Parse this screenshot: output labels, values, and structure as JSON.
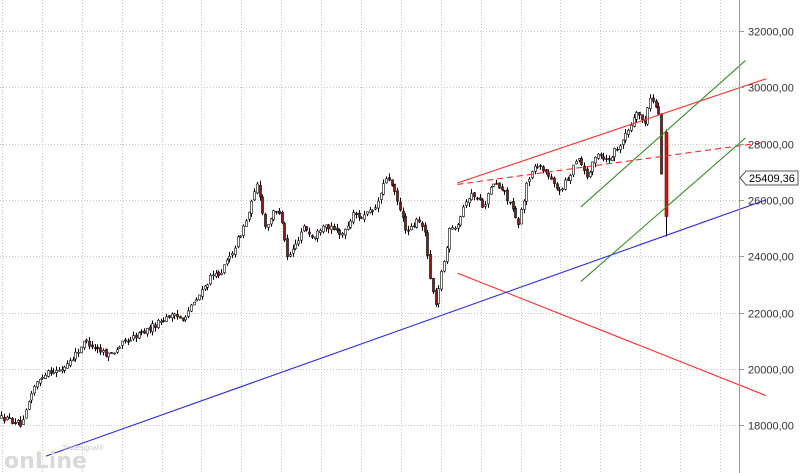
{
  "chart_data": {
    "type": "candlestick",
    "ylim": [
      16300,
      33100
    ],
    "y_ticks": [
      18000,
      20000,
      22000,
      24000,
      26000,
      28000,
      30000,
      32000
    ],
    "y_tick_labels": [
      "18000,00",
      "20000,00",
      "22000,00",
      "24000,00",
      "26000,00",
      "28000,00",
      "30000,00",
      "32000,00"
    ],
    "last_value": 25409.36,
    "last_value_label": "25409,36",
    "grid": true,
    "candle_path": [
      [
        0,
        18300
      ],
      [
        12,
        18200
      ],
      [
        25,
        18000
      ],
      [
        35,
        19300
      ],
      [
        50,
        19950
      ],
      [
        62,
        19900
      ],
      [
        75,
        20400
      ],
      [
        88,
        21000
      ],
      [
        100,
        20700
      ],
      [
        112,
        20500
      ],
      [
        125,
        20900
      ],
      [
        140,
        21200
      ],
      [
        155,
        21500
      ],
      [
        170,
        21900
      ],
      [
        185,
        21800
      ],
      [
        200,
        22500
      ],
      [
        212,
        23200
      ],
      [
        225,
        23500
      ],
      [
        238,
        24400
      ],
      [
        250,
        25400
      ],
      [
        260,
        26600
      ],
      [
        268,
        25000
      ],
      [
        275,
        25500
      ],
      [
        283,
        25600
      ],
      [
        290,
        23900
      ],
      [
        298,
        24400
      ],
      [
        306,
        25100
      ],
      [
        316,
        24600
      ],
      [
        326,
        25200
      ],
      [
        336,
        24900
      ],
      [
        346,
        24800
      ],
      [
        356,
        25500
      ],
      [
        366,
        25400
      ],
      [
        378,
        25700
      ],
      [
        390,
        26900
      ],
      [
        400,
        25900
      ],
      [
        410,
        24800
      ],
      [
        420,
        25300
      ],
      [
        428,
        24800
      ],
      [
        433,
        23100
      ],
      [
        438,
        22300
      ],
      [
        445,
        23600
      ],
      [
        452,
        24900
      ],
      [
        460,
        25200
      ],
      [
        468,
        26000
      ],
      [
        476,
        26200
      ],
      [
        486,
        25800
      ],
      [
        496,
        26600
      ],
      [
        506,
        26300
      ],
      [
        514,
        25800
      ],
      [
        520,
        25000
      ],
      [
        530,
        26700
      ],
      [
        540,
        27300
      ],
      [
        550,
        26900
      ],
      [
        560,
        26300
      ],
      [
        570,
        26700
      ],
      [
        580,
        27600
      ],
      [
        590,
        26800
      ],
      [
        600,
        27700
      ],
      [
        610,
        27400
      ],
      [
        620,
        27900
      ],
      [
        630,
        28400
      ],
      [
        640,
        29200
      ],
      [
        646,
        28600
      ],
      [
        652,
        29600
      ],
      [
        657,
        29500
      ],
      [
        661,
        29000
      ],
      [
        666,
        25400
      ]
    ],
    "trendlines": [
      {
        "color": "#ff2a2a",
        "style": "solid",
        "points": [
          [
            "2019-02",
            26600
          ],
          [
            "2020-05",
            30300
          ]
        ]
      },
      {
        "color": "#ff2a2a",
        "style": "dashed",
        "points": [
          [
            "2019-02",
            26550
          ],
          [
            "2020-05",
            28050
          ]
        ]
      },
      {
        "color": "#ff2a2a",
        "style": "solid",
        "points": [
          [
            "2019-02",
            23400
          ],
          [
            "2020-05",
            19050
          ]
        ]
      },
      {
        "color": "#2a2ae0",
        "style": "solid",
        "points": [
          [
            "2017-06",
            16900
          ],
          [
            "2020-05",
            26000
          ]
        ]
      },
      {
        "color": "#3a8a28",
        "style": "solid",
        "points": [
          [
            "2019-08",
            25750
          ],
          [
            "2020-04",
            30950
          ]
        ]
      },
      {
        "color": "#3a8a28",
        "style": "solid",
        "points": [
          [
            "2019-08",
            23100
          ],
          [
            "2020-04",
            28200
          ]
        ]
      }
    ],
    "logo": {
      "small": "Tradesignal®",
      "brand": "onLine"
    }
  }
}
